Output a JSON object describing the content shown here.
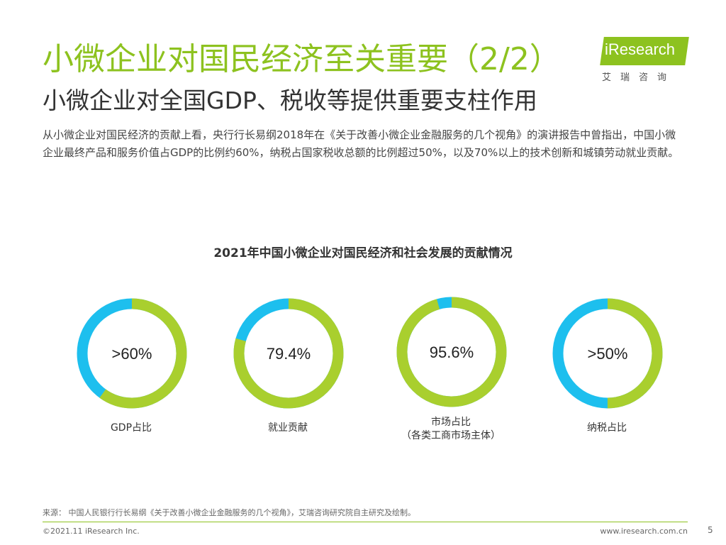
{
  "header": {
    "title": "小微企业对国民经济至关重要（2/2）",
    "subtitle": "小微企业对全国GDP、税收等提供重要支柱作用"
  },
  "logo": {
    "text": "iResearch",
    "sub": "艾瑞咨询"
  },
  "intro": "从小微企业对国民经济的贡献上看，央行行长易纲2018年在《关于改善小微企业金融服务的几个视角》的演讲报告中曾指出，中国小微企业最终产品和服务价值占GDP的比例约60%，纳税占国家税收总额的比例超过50%，以及70%以上的技术创新和城镇劳动就业贡献。",
  "chart_data": {
    "type": "pie",
    "title": "2021年中国小微企业对国民经济和社会发展的贡献情况",
    "items": [
      {
        "value_label": ">60%",
        "value": 60,
        "category": "GDP占比",
        "category_sub": ""
      },
      {
        "value_label": "79.4%",
        "value": 79.4,
        "category": "就业贡献",
        "category_sub": ""
      },
      {
        "value_label": "95.6%",
        "value": 95.6,
        "category": "市场占比",
        "category_sub": "（各类工商市场主体）"
      },
      {
        "value_label": ">50%",
        "value": 50,
        "category": "纳税占比",
        "category_sub": ""
      }
    ],
    "colors": {
      "share": "#a9cf2e",
      "rest": "#1dbfee"
    }
  },
  "footer": {
    "source": "来源：  中国人民银行行长易纲《关于改善小微企业金融服务的几个视角》，艾瑞咨询研究院自主研究及绘制。",
    "copyright": "©2021.11 iResearch Inc.",
    "website": "www.iresearch.com.cn",
    "page": "5"
  }
}
